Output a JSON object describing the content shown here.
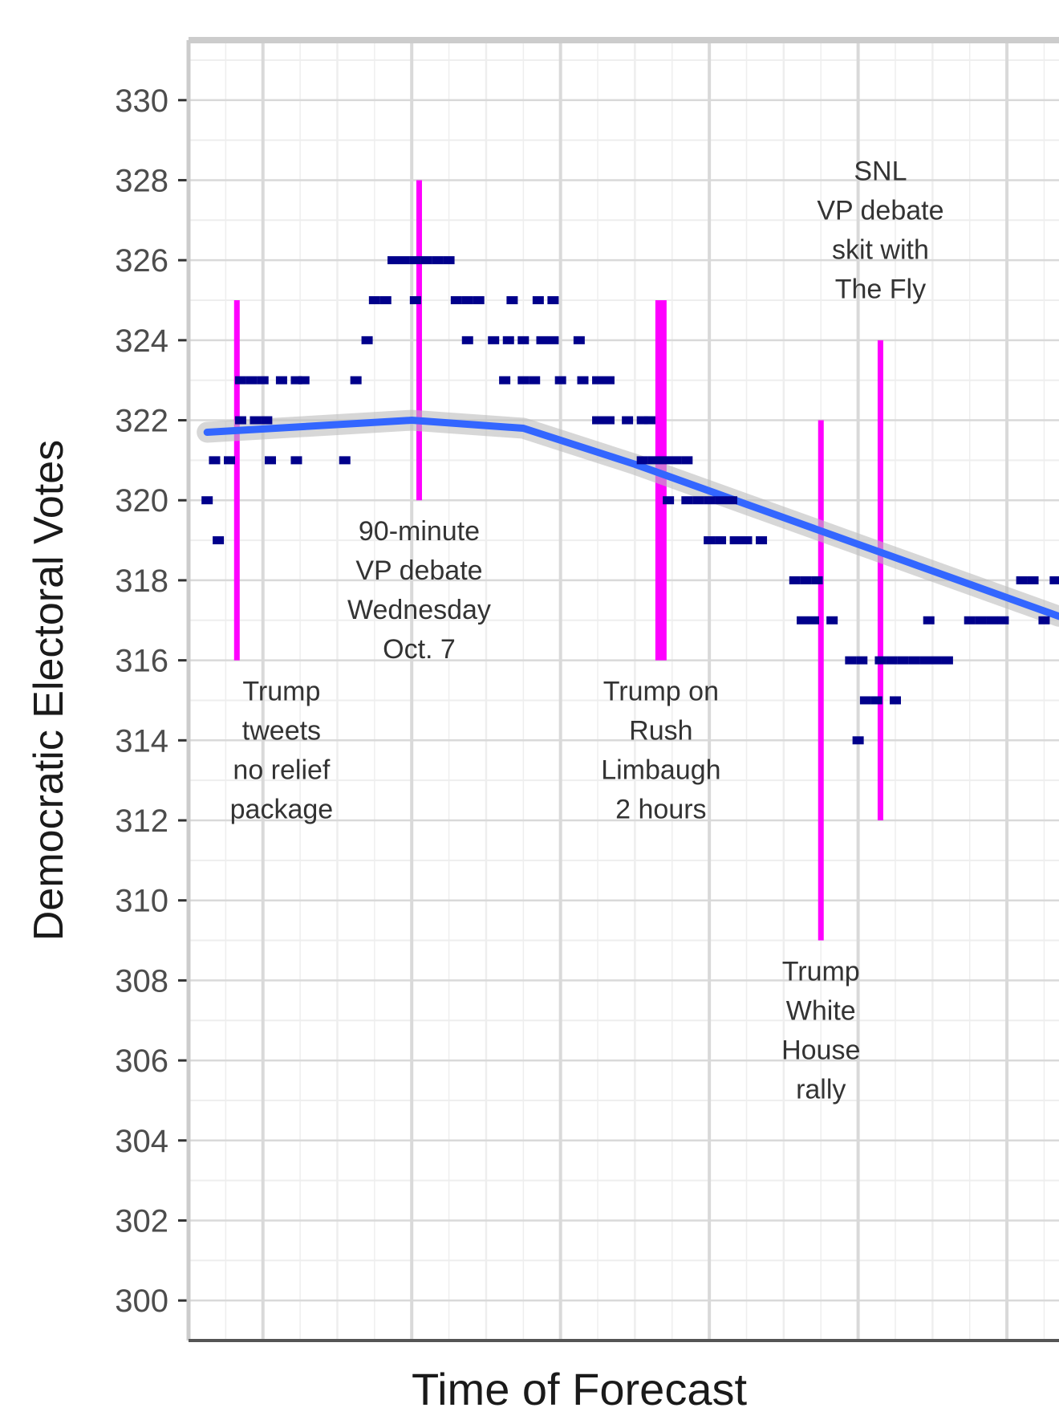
{
  "chart_data": {
    "type": "scatter",
    "xlabel": "Time of Forecast",
    "ylabel": "Democratic Electoral Votes",
    "ylim": [
      299,
      331.5
    ],
    "xlim": [
      0,
      23.4
    ],
    "y_ticks": [
      300,
      302,
      304,
      306,
      308,
      310,
      312,
      314,
      316,
      318,
      320,
      322,
      324,
      326,
      328,
      330
    ],
    "grid": true,
    "colors": {
      "points": "#00008b",
      "trend": "#3366ff",
      "event": "#ff00ff",
      "panel_border": "#cccccc",
      "grid_major": "#d9d9d9",
      "grid_minor": "#eeeeee"
    },
    "series": [
      {
        "points": [
          [
            0.5,
            320
          ],
          [
            0.8,
            319
          ],
          [
            0.7,
            321
          ],
          [
            1.1,
            321
          ],
          [
            1.4,
            322
          ],
          [
            1.8,
            322
          ],
          [
            2.1,
            322
          ],
          [
            1.4,
            323
          ],
          [
            1.7,
            323
          ],
          [
            2.0,
            323
          ],
          [
            2.5,
            323
          ],
          [
            2.9,
            323
          ],
          [
            3.1,
            323
          ],
          [
            2.2,
            321
          ],
          [
            2.9,
            321
          ],
          [
            4.2,
            321
          ],
          [
            4.5,
            323
          ],
          [
            4.8,
            324
          ],
          [
            5.0,
            325
          ],
          [
            5.3,
            325
          ],
          [
            6.1,
            325
          ],
          [
            5.5,
            326
          ],
          [
            5.8,
            326
          ],
          [
            6.1,
            326
          ],
          [
            6.4,
            326
          ],
          [
            6.7,
            326
          ],
          [
            7.0,
            326
          ],
          [
            7.2,
            325
          ],
          [
            7.5,
            325
          ],
          [
            7.8,
            325
          ],
          [
            8.7,
            325
          ],
          [
            9.4,
            325
          ],
          [
            9.8,
            325
          ],
          [
            7.5,
            324
          ],
          [
            8.2,
            324
          ],
          [
            8.6,
            324
          ],
          [
            9.0,
            324
          ],
          [
            9.5,
            324
          ],
          [
            9.8,
            324
          ],
          [
            10.5,
            324
          ],
          [
            8.5,
            323
          ],
          [
            9.0,
            323
          ],
          [
            9.3,
            323
          ],
          [
            10.0,
            323
          ],
          [
            10.6,
            323
          ],
          [
            11.0,
            323
          ],
          [
            11.3,
            323
          ],
          [
            11.0,
            322
          ],
          [
            11.3,
            322
          ],
          [
            11.8,
            322
          ],
          [
            12.2,
            322
          ],
          [
            12.4,
            322
          ],
          [
            12.2,
            321
          ],
          [
            12.5,
            321
          ],
          [
            12.8,
            321
          ],
          [
            13.1,
            321
          ],
          [
            13.4,
            321
          ],
          [
            12.9,
            320
          ],
          [
            13.4,
            320
          ],
          [
            13.7,
            320
          ],
          [
            14.0,
            320
          ],
          [
            14.3,
            320
          ],
          [
            14.6,
            320
          ],
          [
            14.0,
            319
          ],
          [
            14.3,
            319
          ],
          [
            14.7,
            319
          ],
          [
            15.0,
            319
          ],
          [
            15.4,
            319
          ],
          [
            16.3,
            318
          ],
          [
            16.6,
            318
          ],
          [
            16.9,
            318
          ],
          [
            16.5,
            317
          ],
          [
            16.8,
            317
          ],
          [
            17.3,
            317
          ],
          [
            17.8,
            316
          ],
          [
            18.1,
            316
          ],
          [
            18.6,
            316
          ],
          [
            18.9,
            316
          ],
          [
            19.2,
            316
          ],
          [
            19.5,
            316
          ],
          [
            19.8,
            316
          ],
          [
            20.1,
            316
          ],
          [
            20.4,
            316
          ],
          [
            18.0,
            314
          ],
          [
            18.2,
            315
          ],
          [
            18.5,
            315
          ],
          [
            19.0,
            315
          ],
          [
            19.9,
            317
          ],
          [
            21.0,
            317
          ],
          [
            21.3,
            317
          ],
          [
            21.6,
            317
          ],
          [
            21.9,
            317
          ],
          [
            23.0,
            317
          ],
          [
            22.4,
            318
          ],
          [
            22.7,
            318
          ],
          [
            23.3,
            318
          ]
        ]
      }
    ],
    "trend": [
      [
        0.5,
        321.7
      ],
      [
        6.0,
        322.0
      ],
      [
        9.0,
        321.8
      ],
      [
        12.0,
        320.9
      ],
      [
        15.0,
        319.9
      ],
      [
        18.0,
        318.9
      ],
      [
        21.0,
        317.9
      ],
      [
        23.4,
        317.1
      ]
    ],
    "events": [
      {
        "x": 1.3,
        "ymin": 316,
        "ymax": 325,
        "width": "thin",
        "label": [
          "Trump",
          "tweets",
          "no relief",
          "package"
        ],
        "label_x": 2.5,
        "label_y": 315.0
      },
      {
        "x": 6.2,
        "ymin": 320,
        "ymax": 328,
        "width": "thin",
        "label": [
          "90-minute",
          "VP debate",
          "Wednesday",
          "Oct. 7"
        ],
        "label_x": 6.2,
        "label_y": 319.0
      },
      {
        "x": 12.7,
        "ymin": 316,
        "ymax": 325,
        "width": "thick",
        "label": [
          "Trump on",
          "Rush",
          "Limbaugh",
          "2 hours"
        ],
        "label_x": 12.7,
        "label_y": 315.0
      },
      {
        "x": 17.0,
        "ymin": 309,
        "ymax": 322,
        "width": "thin",
        "label": [
          "Trump",
          "White",
          "House",
          "rally"
        ],
        "label_x": 17.0,
        "label_y": 308.0
      },
      {
        "x": 18.6,
        "ymin": 312,
        "ymax": 324,
        "width": "thin",
        "label": [
          "SNL",
          "VP debate",
          "skit with",
          "The Fly"
        ],
        "label_x": 18.6,
        "label_y": 328.0
      }
    ]
  }
}
